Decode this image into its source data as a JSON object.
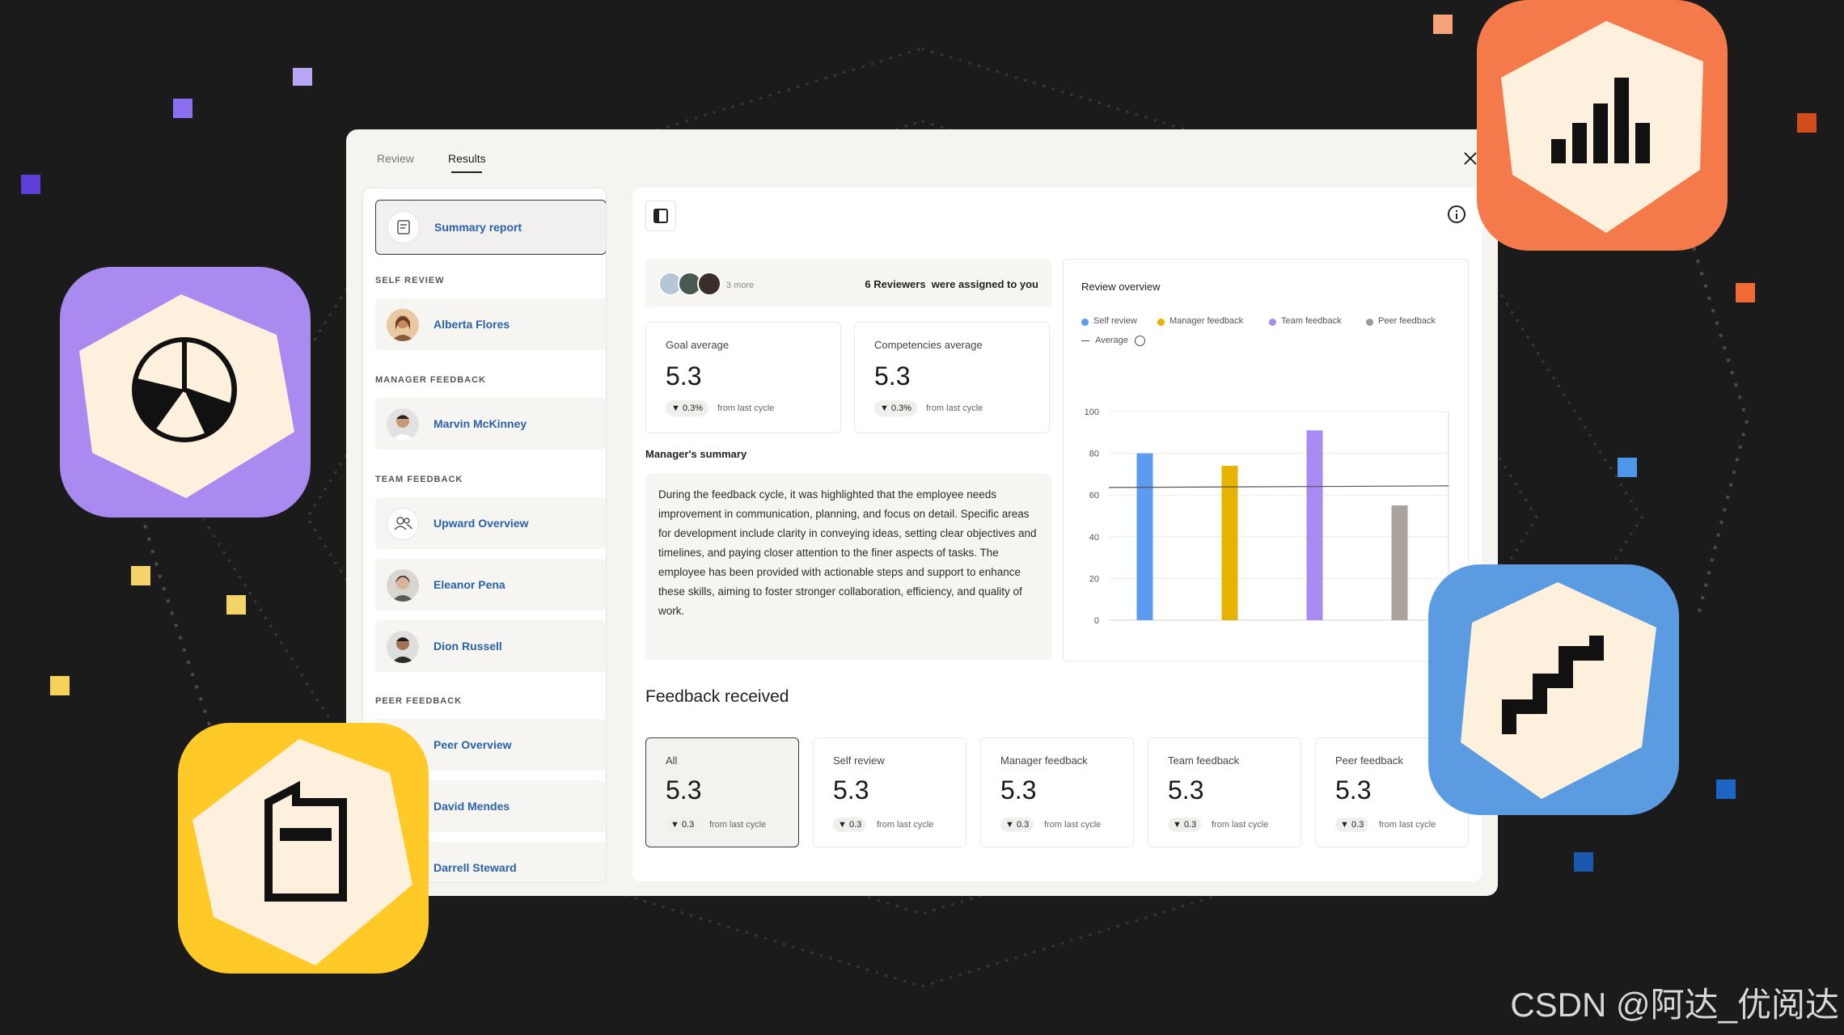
{
  "tabs": [
    {
      "label": "Review",
      "active": false
    },
    {
      "label": "Results",
      "active": true
    }
  ],
  "sidebar": {
    "summary": "Summary report",
    "sections": [
      {
        "heading": "SELF REVIEW",
        "items": [
          "Alberta Flores"
        ]
      },
      {
        "heading": "MANAGER FEEDBACK",
        "items": [
          "Marvin McKinney"
        ]
      },
      {
        "heading": "TEAM FEEDBACK",
        "items": [
          "Upward Overview",
          "Eleanor Pena",
          "Dion Russell"
        ]
      },
      {
        "heading": "PEER FEEDBACK",
        "items": [
          "Peer Overview",
          "David Mendes",
          "Darrell Steward"
        ]
      }
    ]
  },
  "reviewers": {
    "more": "3 more",
    "assigned": "6 Reviewers  were assigned to you"
  },
  "stats": [
    {
      "title": "Goal average",
      "value": "5.3",
      "change": "▼ 0.3%",
      "note": "from last cycle"
    },
    {
      "title": "Competencies average",
      "value": "5.3",
      "change": "▼ 0.3%",
      "note": "from last cycle"
    }
  ],
  "manager_summary": {
    "title": "Manager's summary",
    "text": "During the feedback cycle, it was highlighted that the employee needs improvement in communication, planning, and focus on detail. Specific areas for development include clarity in conveying ideas, setting clear objectives and timelines, and paying closer attention to the finer aspects of tasks. The employee has been provided with actionable steps and support to enhance these skills, aiming to foster stronger collaboration, efficiency, and quality of work."
  },
  "chart_data": {
    "type": "bar",
    "title": "Review overview",
    "categories": [
      "Self review",
      "Manager feedback",
      "Team feedback",
      "Peer feedback"
    ],
    "values": [
      80,
      74,
      91,
      55
    ],
    "colors": [
      "#5b9cf2",
      "#e6b400",
      "#a78bf0",
      "#aaa29c"
    ],
    "average": 64,
    "average_label": "Average",
    "yticks": [
      "0",
      "20",
      "40",
      "60",
      "80",
      "100"
    ],
    "ylim": [
      0,
      100
    ]
  },
  "feedback": {
    "title": "Feedback received",
    "cards": [
      {
        "label": "All",
        "value": "5.3",
        "change": "▼ 0.3",
        "note": "from last cycle",
        "selected": true
      },
      {
        "label": "Self review",
        "value": "5.3",
        "change": "▼ 0.3",
        "note": "from last cycle"
      },
      {
        "label": "Manager feedback",
        "value": "5.3",
        "change": "▼ 0.3",
        "note": "from last cycle"
      },
      {
        "label": "Team feedback",
        "value": "5.3",
        "change": "▼ 0.3",
        "note": "from last cycle"
      },
      {
        "label": "Peer feedback",
        "value": "5.3",
        "change": "▼ 0.3",
        "note": "from last cycle"
      }
    ]
  },
  "watermark": "CSDN @阿达_优阅达",
  "colors": {
    "background": "#1b1b1b",
    "purple_app": "#a98af0",
    "orange_app": "#f47a4c",
    "yellow_app": "#ffc928",
    "blue_app": "#5a9be2",
    "cream": "#fdf0dc",
    "link_blue": "#2962a8"
  },
  "icons": [
    "pie-chart-icon",
    "bar-chart-icon",
    "document-icon",
    "stairs-icon"
  ]
}
